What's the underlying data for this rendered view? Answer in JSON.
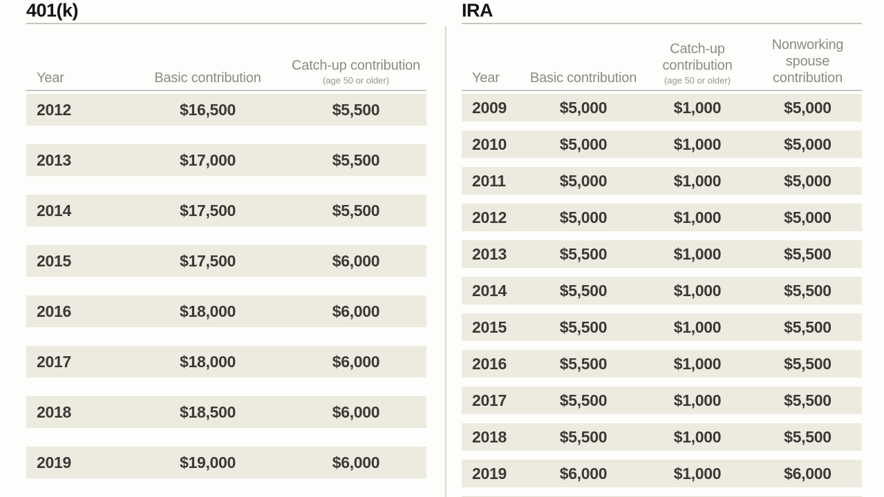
{
  "colors": {
    "background": "#fdfdfb",
    "stripe": "#edebdf",
    "partial_stripe": "#e0dccd",
    "rule": "#c7c6c0",
    "divider": "#d7d6d1",
    "title_text": "#141414",
    "header_text": "#8b8a85",
    "subheader_text": "#96948e",
    "data_text": "#3a3937"
  },
  "chart_data": [
    {
      "type": "table",
      "title": "401(k)",
      "columns": [
        {
          "label": "Year",
          "sublabel": ""
        },
        {
          "label": "Basic contribution",
          "sublabel": ""
        },
        {
          "label": "Catch-up contribution",
          "sublabel": "(age 50 or older)"
        }
      ],
      "rows": [
        [
          "2012",
          "$16,500",
          "$5,500"
        ],
        [
          "2013",
          "$17,000",
          "$5,500"
        ],
        [
          "2014",
          "$17,500",
          "$5,500"
        ],
        [
          "2015",
          "$17,500",
          "$6,000"
        ],
        [
          "2016",
          "$18,000",
          "$6,000"
        ],
        [
          "2017",
          "$18,000",
          "$6,000"
        ],
        [
          "2018",
          "$18,500",
          "$6,000"
        ],
        [
          "2019",
          "$19,000",
          "$6,000"
        ]
      ],
      "partial_next_row_visible": false
    },
    {
      "type": "table",
      "title": "IRA",
      "columns": [
        {
          "label": "Year",
          "sublabel": ""
        },
        {
          "label": "Basic contribution",
          "sublabel": ""
        },
        {
          "label": "Catch-up contribution",
          "sublabel": "(age 50 or older)"
        },
        {
          "label": "Nonworking spouse contribution",
          "sublabel": ""
        }
      ],
      "rows": [
        [
          "2009",
          "$5,000",
          "$1,000",
          "$5,000"
        ],
        [
          "2010",
          "$5,000",
          "$1,000",
          "$5,000"
        ],
        [
          "2011",
          "$5,000",
          "$1,000",
          "$5,000"
        ],
        [
          "2012",
          "$5,000",
          "$1,000",
          "$5,000"
        ],
        [
          "2013",
          "$5,500",
          "$1,000",
          "$5,500"
        ],
        [
          "2014",
          "$5,500",
          "$1,000",
          "$5,500"
        ],
        [
          "2015",
          "$5,500",
          "$1,000",
          "$5,500"
        ],
        [
          "2016",
          "$5,500",
          "$1,000",
          "$5,500"
        ],
        [
          "2017",
          "$5,500",
          "$1,000",
          "$5,500"
        ],
        [
          "2018",
          "$5,500",
          "$1,000",
          "$5,500"
        ],
        [
          "2019",
          "$6,000",
          "$1,000",
          "$6,000"
        ]
      ],
      "partial_next_row_visible": true
    }
  ]
}
